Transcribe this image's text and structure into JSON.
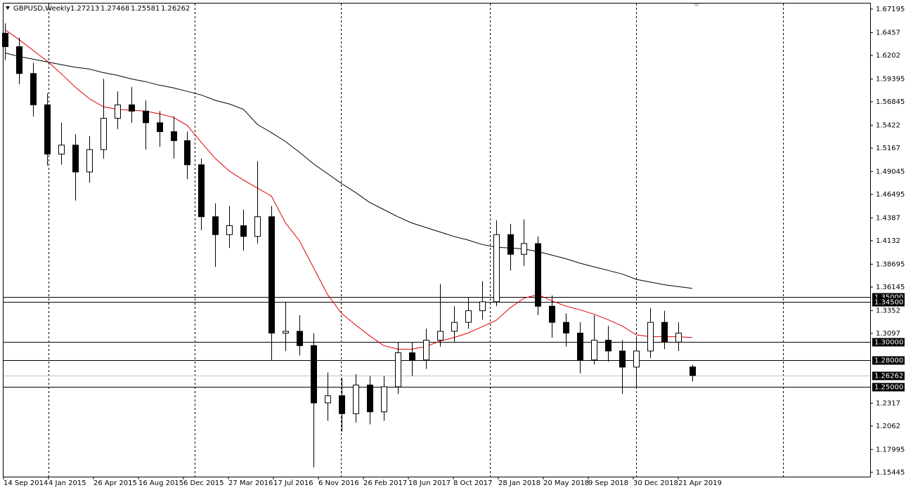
{
  "header": {
    "symbol": "GBPUSD,Weekly",
    "ohlc": [
      1.27213,
      1.27468,
      1.25581,
      1.26262
    ]
  },
  "chart_data": {
    "type": "candlestick",
    "date_labels": [
      "14 Sep 2014",
      "4 Jan 2015",
      "26 Apr 2015",
      "16 Aug 2015",
      "6 Dec 2015",
      "27 Mar 2016",
      "17 Jul 2016",
      "6 Nov 2016",
      "26 Feb 2017",
      "18 Jun 2017",
      "8 Oct 2017",
      "28 Jan 2018",
      "20 May 2018",
      "9 Sep 2018",
      "30 Dec 2018",
      "21 Apr 2019"
    ],
    "open": [
      1.645,
      1.63,
      1.6,
      1.565,
      1.51,
      1.52,
      1.49,
      1.515,
      1.55,
      1.565,
      1.558,
      1.545,
      1.535,
      1.525,
      1.498,
      1.44,
      1.42,
      1.43,
      1.418,
      1.44,
      1.31,
      1.312,
      1.296,
      1.232,
      1.24,
      1.22,
      1.252,
      1.222,
      1.25,
      1.288,
      1.28,
      1.302,
      1.312,
      1.322,
      1.335,
      1.345,
      1.42,
      1.398,
      1.41,
      1.34,
      1.322,
      1.31,
      1.28,
      1.302,
      1.29,
      1.272,
      1.29,
      1.322,
      1.3,
      1.27213
    ],
    "high": [
      1.656,
      1.64,
      1.612,
      1.578,
      1.545,
      1.532,
      1.53,
      1.594,
      1.58,
      1.585,
      1.57,
      1.558,
      1.552,
      1.535,
      1.505,
      1.455,
      1.452,
      1.448,
      1.502,
      1.452,
      1.345,
      1.33,
      1.31,
      1.266,
      1.26,
      1.264,
      1.262,
      1.262,
      1.3,
      1.3,
      1.315,
      1.365,
      1.34,
      1.35,
      1.368,
      1.436,
      1.432,
      1.437,
      1.418,
      1.352,
      1.332,
      1.322,
      1.33,
      1.318,
      1.302,
      1.305,
      1.338,
      1.335,
      1.322,
      1.27468
    ],
    "low": [
      1.615,
      1.588,
      1.552,
      1.497,
      1.498,
      1.458,
      1.478,
      1.505,
      1.538,
      1.545,
      1.515,
      1.518,
      1.505,
      1.482,
      1.425,
      1.384,
      1.405,
      1.402,
      1.41,
      1.28,
      1.29,
      1.285,
      1.16,
      1.212,
      1.2,
      1.21,
      1.208,
      1.212,
      1.242,
      1.262,
      1.27,
      1.295,
      1.3,
      1.315,
      1.325,
      1.34,
      1.38,
      1.385,
      1.33,
      1.305,
      1.295,
      1.265,
      1.275,
      1.278,
      1.242,
      1.248,
      1.282,
      1.292,
      1.29,
      1.25581
    ],
    "close": [
      1.63,
      1.6,
      1.565,
      1.51,
      1.52,
      1.49,
      1.515,
      1.55,
      1.565,
      1.558,
      1.545,
      1.535,
      1.525,
      1.498,
      1.44,
      1.42,
      1.43,
      1.418,
      1.44,
      1.31,
      1.312,
      1.296,
      1.232,
      1.24,
      1.22,
      1.252,
      1.222,
      1.25,
      1.288,
      1.28,
      1.302,
      1.312,
      1.322,
      1.335,
      1.345,
      1.42,
      1.398,
      1.41,
      1.34,
      1.322,
      1.31,
      1.28,
      1.302,
      1.29,
      1.272,
      1.29,
      1.322,
      1.3,
      1.31,
      1.26262
    ],
    "ma": [
      {
        "color": "#e00000",
        "values": [
          1.649,
          1.638,
          1.626,
          1.614,
          1.6,
          1.585,
          1.572,
          1.563,
          1.56,
          1.559,
          1.558,
          1.555,
          1.551,
          1.542,
          1.523,
          1.505,
          1.491,
          1.481,
          1.472,
          1.463,
          1.433,
          1.413,
          1.383,
          1.353,
          1.332,
          1.319,
          1.307,
          1.296,
          1.292,
          1.292,
          1.295,
          1.301,
          1.305,
          1.31,
          1.317,
          1.324,
          1.338,
          1.349,
          1.353,
          1.346,
          1.34,
          1.336,
          1.331,
          1.325,
          1.318,
          1.308,
          1.306,
          1.306,
          1.306,
          1.305
        ]
      },
      {
        "color": "#000000",
        "values": [
          1.623,
          1.619,
          1.616,
          1.613,
          1.61,
          1.607,
          1.605,
          1.601,
          1.598,
          1.594,
          1.591,
          1.587,
          1.584,
          1.58,
          1.576,
          1.57,
          1.566,
          1.56,
          1.543,
          1.534,
          1.524,
          1.512,
          1.499,
          1.488,
          1.477,
          1.467,
          1.456,
          1.448,
          1.44,
          1.433,
          1.428,
          1.423,
          1.418,
          1.414,
          1.409,
          1.406,
          1.405,
          1.404,
          1.401,
          1.397,
          1.393,
          1.388,
          1.384,
          1.38,
          1.376,
          1.37,
          1.367,
          1.364,
          1.362,
          1.36
        ]
      }
    ],
    "ylim": [
      1.1496,
      1.6782
    ],
    "yticks": [
      1.67195,
      1.6457,
      1.6202,
      1.59395,
      1.56845,
      1.5422,
      1.5167,
      1.49045,
      1.46495,
      1.4387,
      1.4132,
      1.38695,
      1.36145,
      1.3352,
      1.3097,
      1.2317,
      1.2062,
      1.17995,
      1.15445
    ],
    "levels": [
      {
        "value": 1.35,
        "label": "1.35000"
      },
      {
        "value": 1.345,
        "label": "1.34500"
      },
      {
        "value": 1.3,
        "label": "1.30000"
      },
      {
        "value": 1.28,
        "label": "1.28000"
      },
      {
        "value": 1.25,
        "label": "1.25000"
      }
    ],
    "current": 1.26262
  }
}
